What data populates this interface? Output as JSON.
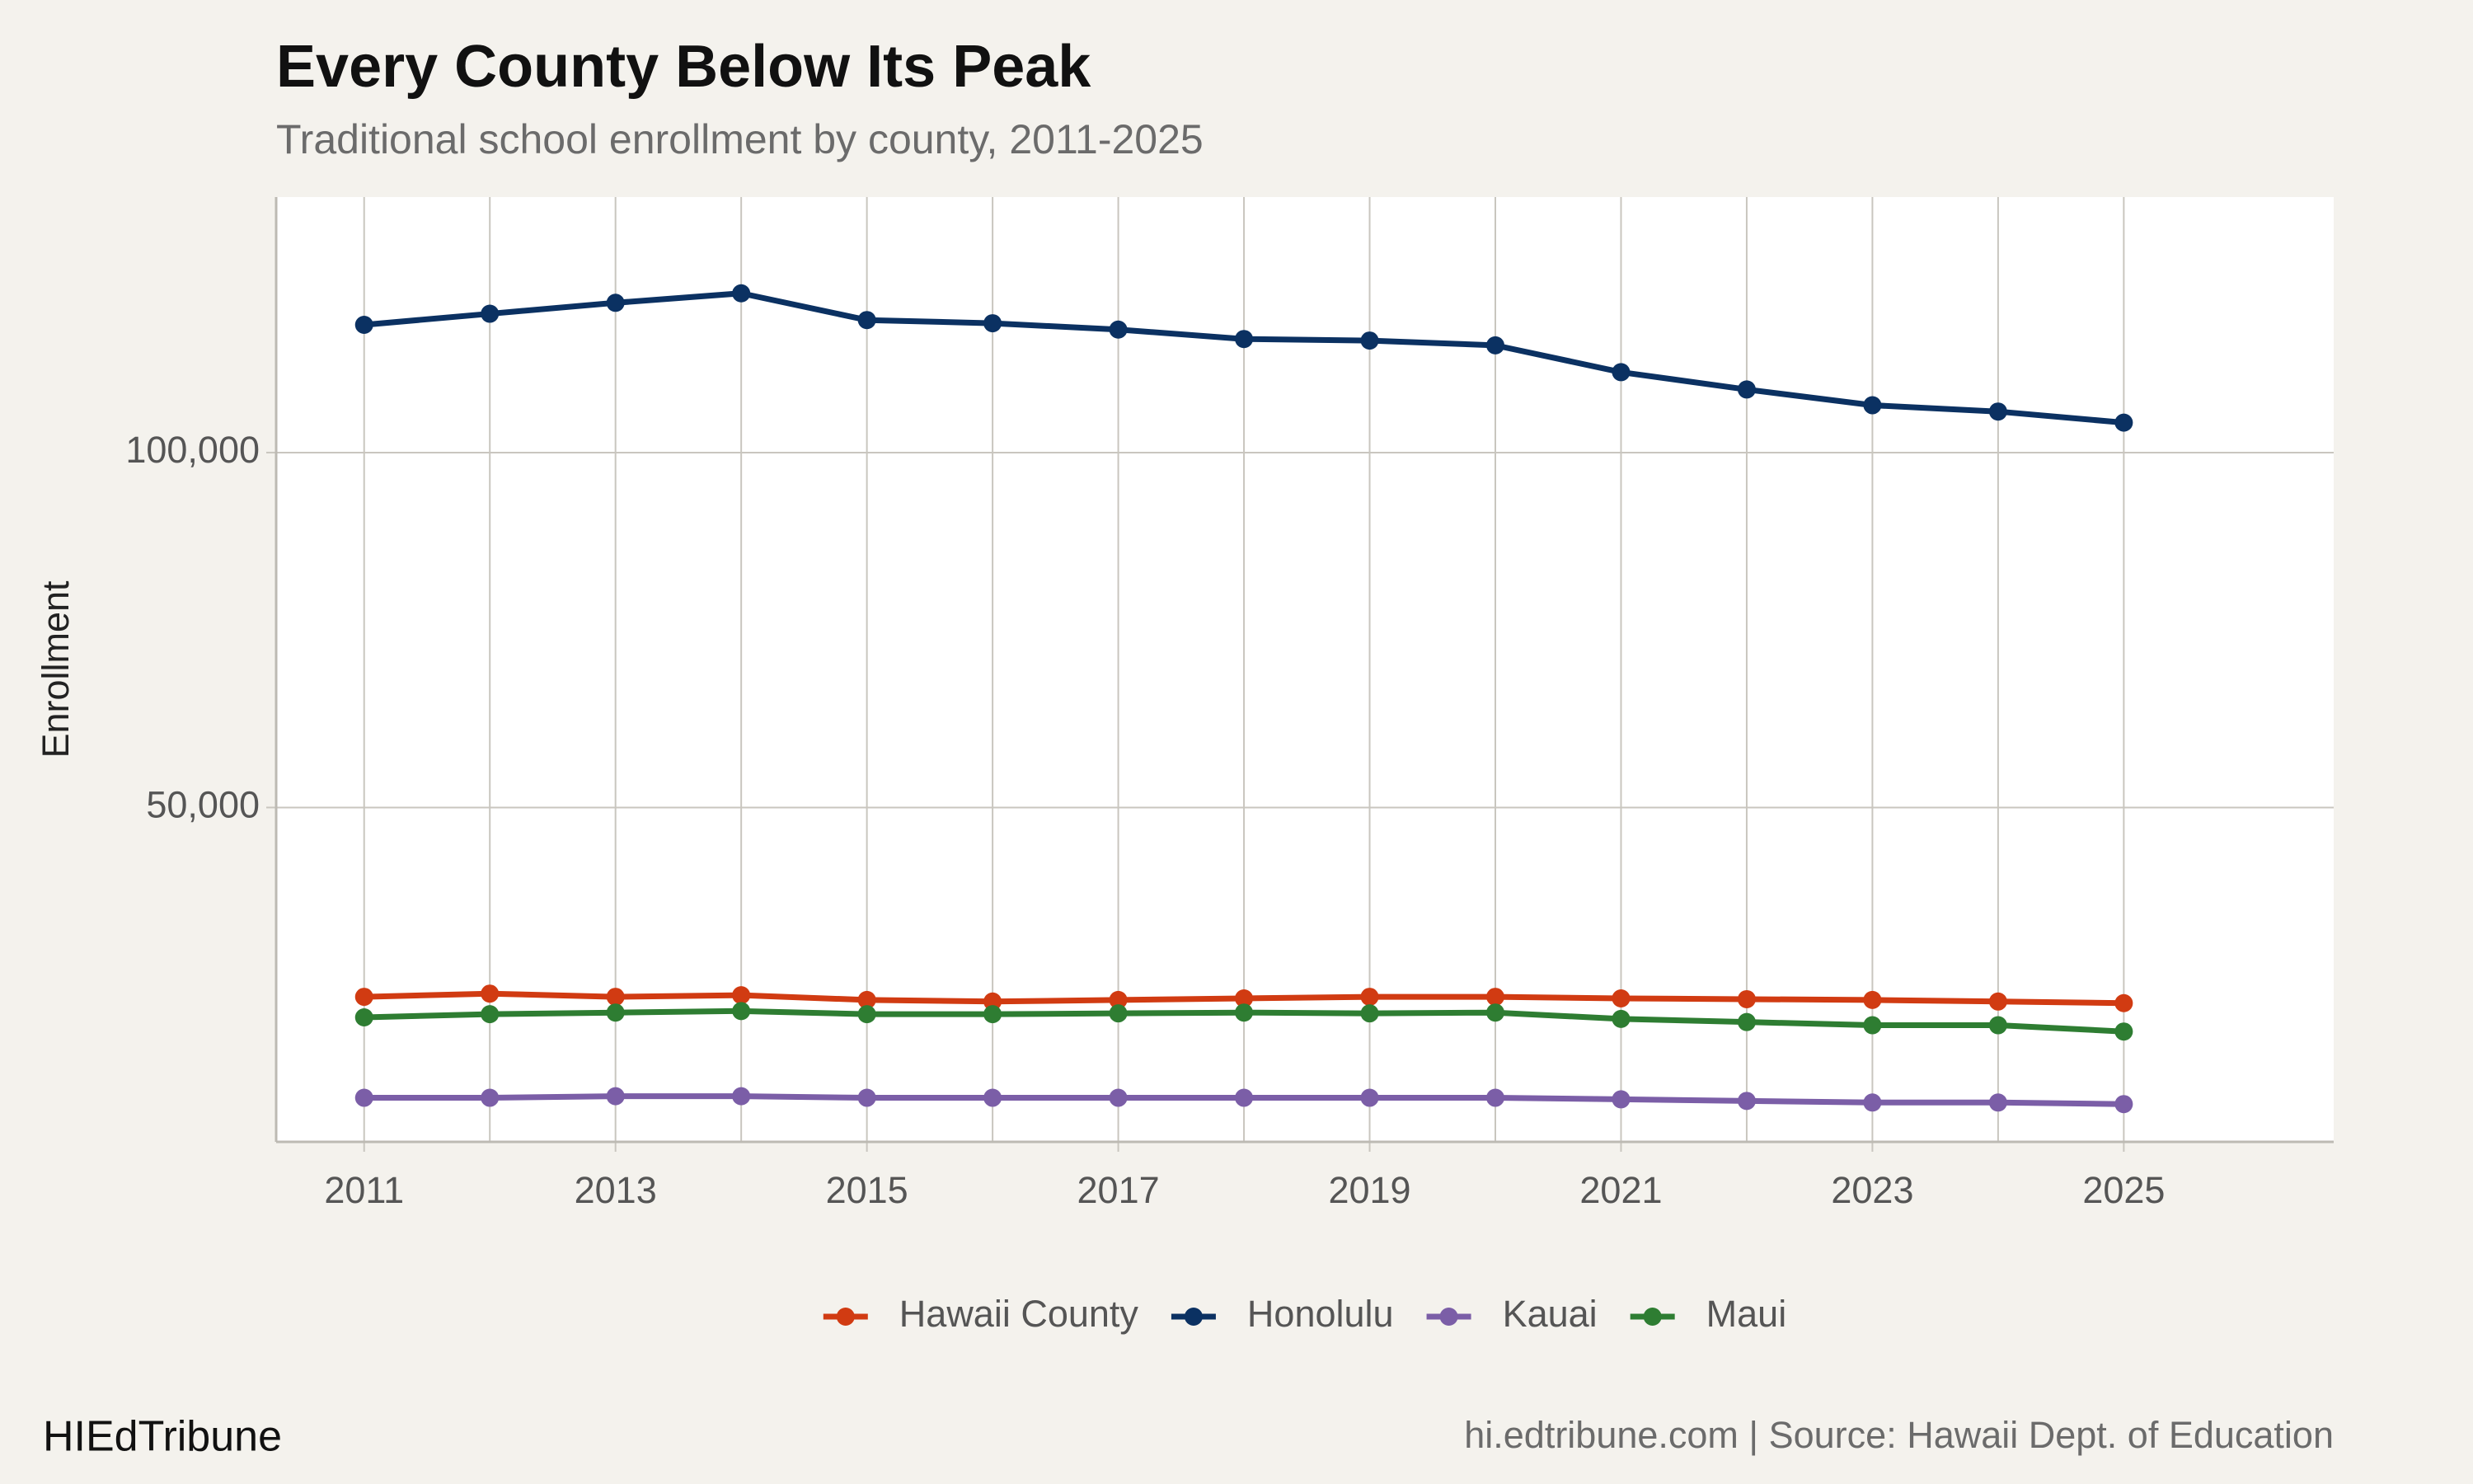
{
  "chart_data": {
    "type": "line",
    "title": "Every County Below Its Peak",
    "subtitle": "Traditional school enrollment by county, 2011-2025",
    "y_label": "Enrollment",
    "x": [
      2011,
      2012,
      2013,
      2014,
      2015,
      2016,
      2017,
      2018,
      2019,
      2020,
      2021,
      2022,
      2023,
      2024,
      2025
    ],
    "series": [
      {
        "name": "Hawaii County",
        "color": "#d13b12",
        "values": [
          23330,
          23780,
          23330,
          23560,
          22890,
          22670,
          22890,
          23110,
          23330,
          23330,
          23110,
          23000,
          22890,
          22670,
          22440
        ]
      },
      {
        "name": "Honolulu",
        "color": "#0b3162",
        "values": [
          118000,
          119560,
          121100,
          122440,
          118670,
          118220,
          117330,
          116000,
          115780,
          115110,
          111330,
          108890,
          106670,
          105780,
          104220
        ]
      },
      {
        "name": "Kauai",
        "color": "#7b5ea7",
        "values": [
          9110,
          9110,
          9330,
          9330,
          9110,
          9110,
          9110,
          9110,
          9110,
          9110,
          8890,
          8670,
          8440,
          8440,
          8220
        ]
      },
      {
        "name": "Maui",
        "color": "#2e7d32",
        "values": [
          20440,
          20890,
          21110,
          21330,
          20890,
          20890,
          21000,
          21110,
          21000,
          21110,
          20220,
          19780,
          19330,
          19330,
          18440
        ]
      }
    ],
    "xlim": [
      2010.3,
      2026.67
    ],
    "xticks": [
      2011,
      2013,
      2015,
      2017,
      2019,
      2021,
      2023,
      2025
    ],
    "xticks_minor": [
      2012,
      2014,
      2016,
      2018,
      2020,
      2022,
      2024
    ],
    "ylim": [
      2900,
      136000
    ],
    "yticks": [
      {
        "value": 50000,
        "label": "50,000"
      },
      {
        "value": 100000,
        "label": "100,000"
      }
    ],
    "grid": true,
    "legend": "bottom"
  },
  "footer": {
    "brand": "HIEdTribune",
    "source": "hi.edtribune.com | Source: Hawaii Dept. of Education"
  }
}
